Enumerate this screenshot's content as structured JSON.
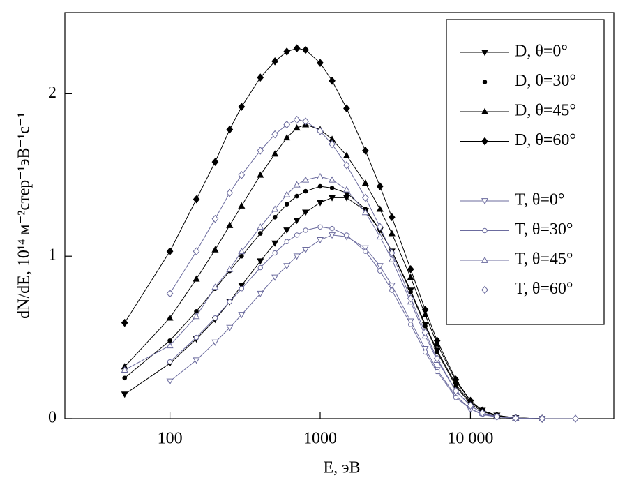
{
  "chart_data": {
    "type": "line",
    "x_label": "E, эВ",
    "y_label": "dN/dE, 10¹⁴ м⁻²стер⁻¹эВ⁻¹с⁻¹",
    "x": [
      50,
      100,
      150,
      200,
      250,
      300,
      400,
      500,
      600,
      700,
      800,
      1000,
      1200,
      1500,
      2000,
      2500,
      3000,
      4000,
      5000,
      6000,
      8000,
      10000,
      12000,
      15000,
      20000,
      30000,
      50000
    ],
    "xscale": "log",
    "xlim": [
      20,
      90000
    ],
    "xticks": [
      100,
      1000,
      {
        "value": 10000,
        "label": "10 000"
      }
    ],
    "ylim": [
      0,
      2.5
    ],
    "yticks": [
      0,
      1,
      2
    ],
    "grid": false,
    "legend_position": "upper right",
    "series": [
      {
        "name": "D, θ=0°",
        "color": "#000000",
        "marker": "triangle-down",
        "filled": true,
        "values": [
          0.15,
          0.34,
          0.49,
          0.61,
          0.72,
          0.82,
          0.97,
          1.08,
          1.16,
          1.22,
          1.27,
          1.33,
          1.36,
          1.36,
          1.28,
          1.16,
          1.03,
          0.79,
          0.58,
          0.42,
          0.21,
          0.1,
          0.05,
          0.02,
          0.005,
          0,
          null
        ]
      },
      {
        "name": "D, θ=30°",
        "color": "#000000",
        "marker": "circle",
        "filled": true,
        "values": [
          0.25,
          0.48,
          0.66,
          0.8,
          0.91,
          1.0,
          1.14,
          1.24,
          1.32,
          1.37,
          1.4,
          1.43,
          1.42,
          1.39,
          1.29,
          1.16,
          1.03,
          0.78,
          0.57,
          0.41,
          0.2,
          0.09,
          0.045,
          0.015,
          0.004,
          0,
          null
        ]
      },
      {
        "name": "D, θ=45°",
        "color": "#000000",
        "marker": "triangle",
        "filled": true,
        "values": [
          0.32,
          0.62,
          0.86,
          1.04,
          1.19,
          1.31,
          1.5,
          1.63,
          1.73,
          1.79,
          1.81,
          1.78,
          1.72,
          1.62,
          1.45,
          1.29,
          1.14,
          0.87,
          0.64,
          0.46,
          0.23,
          0.11,
          0.05,
          0.02,
          0.005,
          0,
          null
        ]
      },
      {
        "name": "D, θ=60°",
        "color": "#000000",
        "marker": "diamond",
        "filled": true,
        "values": [
          0.59,
          1.03,
          1.35,
          1.58,
          1.78,
          1.92,
          2.1,
          2.2,
          2.26,
          2.28,
          2.27,
          2.19,
          2.08,
          1.91,
          1.65,
          1.43,
          1.24,
          0.92,
          0.67,
          0.48,
          0.24,
          0.11,
          0.05,
          0.02,
          0.005,
          0,
          null
        ]
      },
      {
        "name": "T, θ=0°",
        "color": "#6b6b9e",
        "marker": "triangle-down",
        "filled": false,
        "values": [
          null,
          0.23,
          0.36,
          0.47,
          0.56,
          0.64,
          0.77,
          0.87,
          0.94,
          1.0,
          1.04,
          1.1,
          1.13,
          1.12,
          1.05,
          0.94,
          0.82,
          0.6,
          0.43,
          0.3,
          0.14,
          0.06,
          0.03,
          0.01,
          0.002,
          0,
          null
        ]
      },
      {
        "name": "T, θ=30°",
        "color": "#6b6b9e",
        "marker": "circle",
        "filled": false,
        "values": [
          null,
          0.35,
          0.5,
          0.62,
          0.72,
          0.8,
          0.93,
          1.02,
          1.09,
          1.13,
          1.16,
          1.18,
          1.17,
          1.13,
          1.03,
          0.91,
          0.79,
          0.58,
          0.41,
          0.29,
          0.13,
          0.06,
          0.025,
          0.01,
          0.002,
          0,
          null
        ]
      },
      {
        "name": "T, θ=45°",
        "color": "#6b6b9e",
        "marker": "triangle",
        "filled": false,
        "values": [
          0.3,
          0.45,
          0.63,
          0.81,
          0.92,
          1.03,
          1.18,
          1.29,
          1.38,
          1.44,
          1.47,
          1.49,
          1.47,
          1.41,
          1.27,
          1.12,
          0.98,
          0.72,
          0.51,
          0.36,
          0.17,
          0.08,
          0.035,
          0.012,
          0.003,
          0,
          null
        ]
      },
      {
        "name": "T, θ=60°",
        "color": "#6b6b9e",
        "marker": "diamond",
        "filled": false,
        "values": [
          null,
          0.77,
          1.03,
          1.23,
          1.39,
          1.5,
          1.65,
          1.75,
          1.81,
          1.84,
          1.83,
          1.77,
          1.69,
          1.56,
          1.36,
          1.18,
          1.02,
          0.74,
          0.53,
          0.37,
          0.17,
          0.08,
          0.035,
          0.012,
          0.003,
          0,
          0
        ]
      }
    ]
  }
}
